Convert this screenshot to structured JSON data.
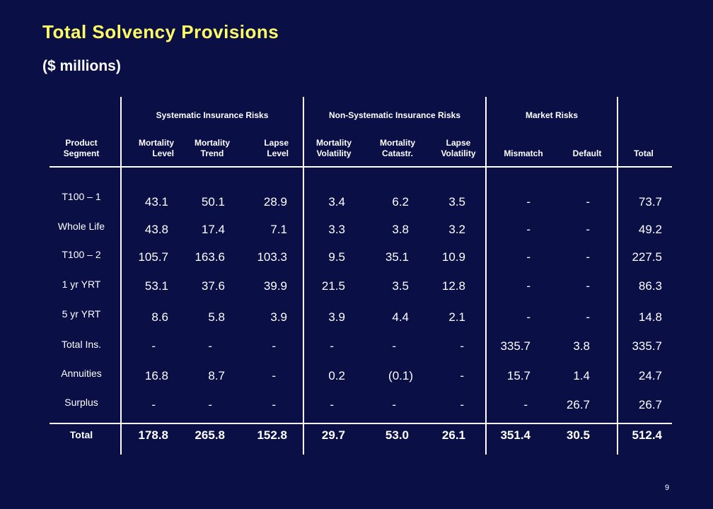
{
  "title": "Total Solvency Provisions",
  "subtitle": "($ millions)",
  "page_number": "9",
  "groups": {
    "systematic": "Systematic Insurance Risks",
    "non_systematic": "Non-Systematic Insurance Risks",
    "market": "Market Risks"
  },
  "columns": {
    "product_segment": "Product\nSegment",
    "mortality_level": "Mortality\nLevel",
    "mortality_trend": "Mortality\nTrend",
    "lapse_level": "Lapse\nLevel",
    "mortality_volatility": "Mortality\nVolatility",
    "mortality_catastr": "Mortality\nCatastr.",
    "lapse_volatility": "Lapse\nVolatility",
    "mismatch": "Mismatch",
    "default": "Default",
    "total": "Total"
  },
  "rows": [
    {
      "segment": "T100 – 1",
      "values": [
        "43.1",
        "50.1",
        "28.9",
        "3.4",
        "6.2",
        "3.5",
        "-",
        "-",
        "73.7"
      ]
    },
    {
      "segment": "Whole Life",
      "values": [
        "43.8",
        "17.4",
        "7.1",
        "3.3",
        "3.8",
        "3.2",
        "-",
        "-",
        "49.2"
      ]
    },
    {
      "segment": "T100 – 2",
      "values": [
        "105.7",
        "163.6",
        "103.3",
        "9.5",
        "35.1",
        "10.9",
        "-",
        "-",
        "227.5"
      ]
    },
    {
      "segment": "1 yr YRT",
      "values": [
        "53.1",
        "37.6",
        "39.9",
        "21.5",
        "3.5",
        "12.8",
        "-",
        "-",
        "86.3"
      ]
    },
    {
      "segment": "5 yr YRT",
      "values": [
        "8.6",
        "5.8",
        "3.9",
        "3.9",
        "4.4",
        "2.1",
        "-",
        "-",
        "14.8"
      ]
    },
    {
      "segment": "Total Ins.",
      "values": [
        "-",
        "-",
        "-",
        "-",
        "-",
        "-",
        "335.7",
        "3.8",
        "335.7"
      ]
    },
    {
      "segment": "Annuities",
      "values": [
        "16.8",
        "8.7",
        "-",
        "0.2",
        "(0.1)",
        "-",
        "15.7",
        "1.4",
        "24.7"
      ]
    },
    {
      "segment": "Surplus",
      "values": [
        "-",
        "-",
        "-",
        "-",
        "-",
        "-",
        "-",
        "26.7",
        "26.7"
      ]
    }
  ],
  "total_row": {
    "segment": "Total",
    "values": [
      "178.8",
      "265.8",
      "152.8",
      "29.7",
      "53.0",
      "26.1",
      "351.4",
      "30.5",
      "512.4"
    ]
  },
  "colors": {
    "background": "#0a0f46",
    "title": "#ffff66",
    "text": "#ffffff"
  }
}
